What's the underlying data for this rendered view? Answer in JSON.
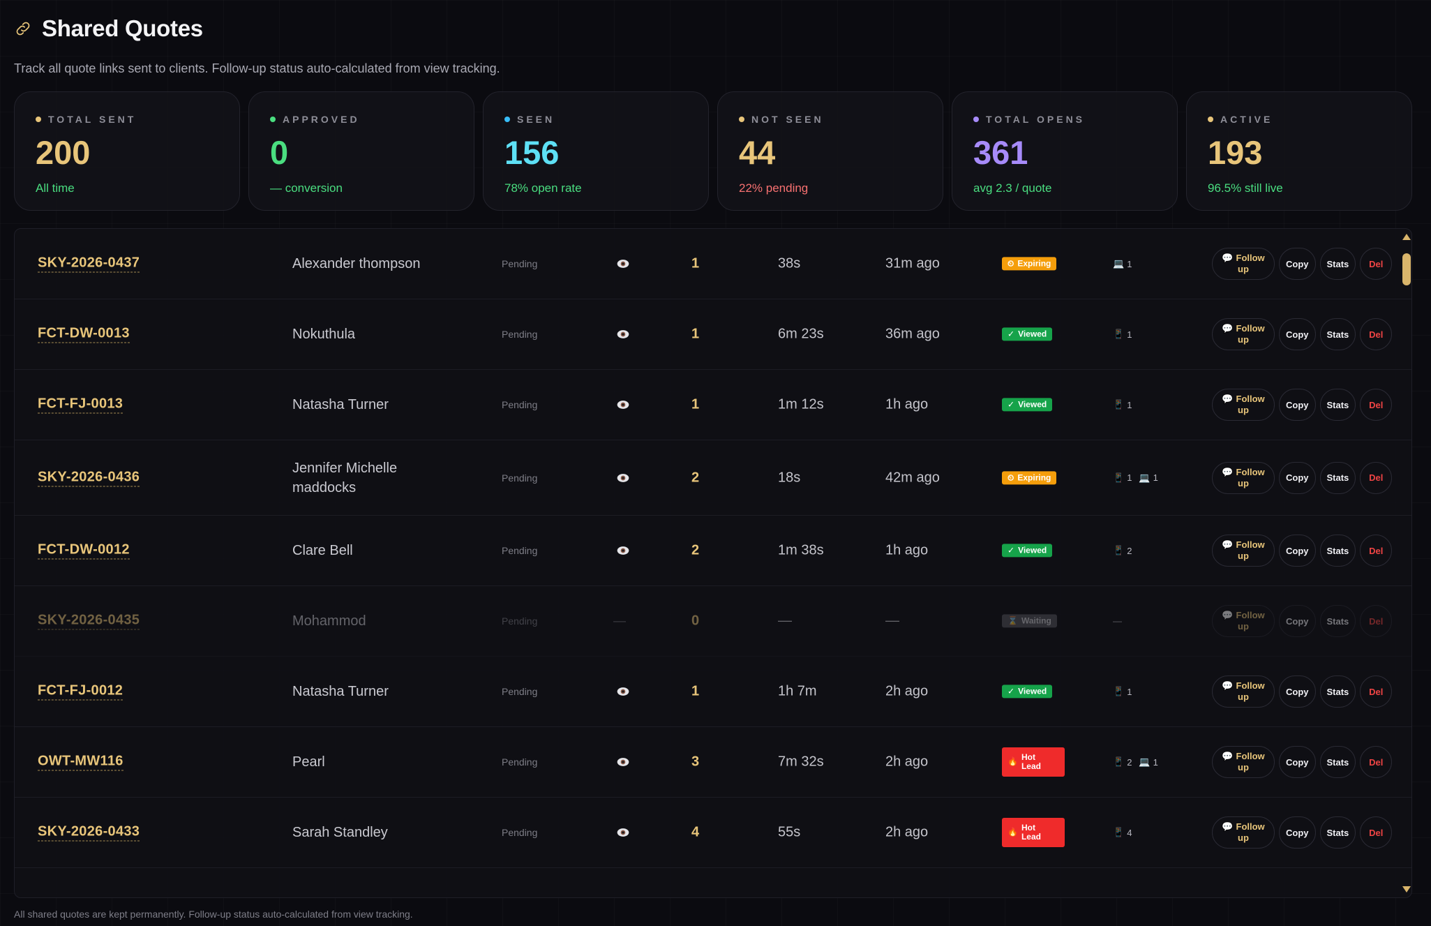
{
  "page": {
    "title": "Shared Quotes",
    "subtitle": "Track all quote links sent to clients. Follow-up status auto-calculated from view tracking.",
    "footer": "All shared quotes are kept permanently. Follow-up status auto-calculated from view tracking."
  },
  "stats": [
    {
      "label": "TOTAL SENT",
      "value": "200",
      "sub": "All time",
      "dot": "#e8c57a",
      "value_color": "#e8c57a",
      "sub_color": "#4ade80"
    },
    {
      "label": "APPROVED",
      "value": "0",
      "sub": "— conversion",
      "dot": "#4ade80",
      "value_color": "#4ade80",
      "sub_color": "#4ade80"
    },
    {
      "label": "SEEN",
      "value": "156",
      "sub": "78% open rate",
      "dot": "#38bdf8",
      "value_color": "#5ee0f5",
      "sub_color": "#4ade80"
    },
    {
      "label": "NOT SEEN",
      "value": "44",
      "sub": "22% pending",
      "dot": "#e8c57a",
      "value_color": "#e8c57a",
      "sub_color": "#f87171"
    },
    {
      "label": "TOTAL OPENS",
      "value": "361",
      "sub": "avg 2.3 / quote",
      "dot": "#a78bfa",
      "value_color": "#a78bfa",
      "sub_color": "#4ade80"
    },
    {
      "label": "ACTIVE",
      "value": "193",
      "sub": "96.5% still live",
      "dot": "#e8c57a",
      "value_color": "#e8c57a",
      "sub_color": "#4ade80"
    }
  ],
  "actions": {
    "follow_1": "Follow",
    "follow_2": "up",
    "copy": "Copy",
    "stats": "Stats",
    "del": "Del"
  },
  "rows": [
    {
      "id": "SKY-2026-0437",
      "name": "Alexander thompson",
      "status": "Pending",
      "opens": "1",
      "duration": "38s",
      "ago": "31m ago",
      "badge": "Expiring",
      "badge_type": "exp",
      "dev1": "1",
      "dev2": "",
      "dim": false
    },
    {
      "id": "FCT-DW-0013",
      "name": "Nokuthula",
      "status": "Pending",
      "opens": "1",
      "duration": "6m 23s",
      "ago": "36m ago",
      "badge": "Viewed",
      "badge_type": "view",
      "dev1": "1",
      "dev2": "",
      "dim": false
    },
    {
      "id": "FCT-FJ-0013",
      "name": "Natasha Turner",
      "status": "Pending",
      "opens": "1",
      "duration": "1m 12s",
      "ago": "1h ago",
      "badge": "Viewed",
      "badge_type": "view",
      "dev1": "1",
      "dev2": "",
      "dim": false
    },
    {
      "id": "SKY-2026-0436",
      "name": "Jennifer Michelle maddocks",
      "status": "Pending",
      "opens": "2",
      "duration": "18s",
      "ago": "42m ago",
      "badge": "Expiring",
      "badge_type": "exp",
      "dev1": "1",
      "dev2": "1",
      "dim": false
    },
    {
      "id": "FCT-DW-0012",
      "name": "Clare Bell",
      "status": "Pending",
      "opens": "2",
      "duration": "1m 38s",
      "ago": "1h ago",
      "badge": "Viewed",
      "badge_type": "view",
      "dev1": "2",
      "dev2": "",
      "dim": false
    },
    {
      "id": "SKY-2026-0435",
      "name": "Mohammod",
      "status": "Pending",
      "opens": "0",
      "duration": "—",
      "ago": "—",
      "badge": "Waiting",
      "badge_type": "wait",
      "dev1": "—",
      "dev2": "",
      "dim": true
    },
    {
      "id": "FCT-FJ-0012",
      "name": "Natasha Turner",
      "status": "Pending",
      "opens": "1",
      "duration": "1h 7m",
      "ago": "2h ago",
      "badge": "Viewed",
      "badge_type": "view",
      "dev1": "1",
      "dev2": "",
      "dim": false
    },
    {
      "id": "OWT-MW116",
      "name": "Pearl",
      "status": "Pending",
      "opens": "3",
      "duration": "7m 32s",
      "ago": "2h ago",
      "badge": "Hot Lead",
      "badge_type": "hot",
      "dev1": "2",
      "dev2": "1",
      "dim": false
    },
    {
      "id": "SKY-2026-0433",
      "name": "Sarah Standley",
      "status": "Pending",
      "opens": "4",
      "duration": "55s",
      "ago": "2h ago",
      "badge": "Hot Lead",
      "badge_type": "hot",
      "dev1": "4",
      "dev2": "",
      "dim": false
    }
  ],
  "colors": {
    "accent": "#e8c57a",
    "viewed": "#16a34a",
    "expiring": "#f59e0b",
    "hot": "#ef2b2b",
    "danger": "#ef4444"
  }
}
